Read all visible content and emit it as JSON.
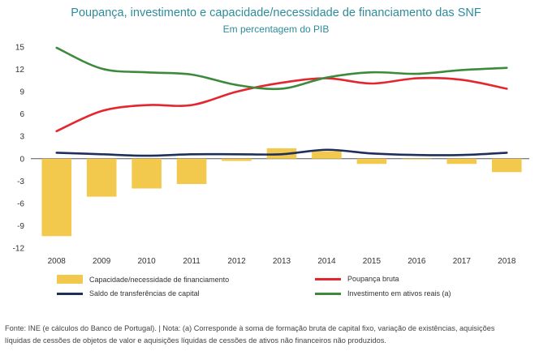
{
  "title": "Poupança, investimento e capacidade/necessidade de financiamento das SNF",
  "subtitle": "Em percentagem do PIB",
  "chart_data": {
    "type": "bar+line",
    "categories": [
      "2008",
      "2009",
      "2010",
      "2011",
      "2012",
      "2013",
      "2014",
      "2015",
      "2016",
      "2017",
      "2018"
    ],
    "ylim": [
      -12,
      15
    ],
    "yticks": [
      -12,
      -9,
      -6,
      -3,
      0,
      3,
      6,
      9,
      12,
      15
    ],
    "ytick_labels": [
      "-12",
      "-9",
      "-6",
      "-3",
      "0",
      "3",
      "6",
      "9",
      "12",
      "15"
    ],
    "bars": {
      "name": "Capacidade/necessidade de financiamento",
      "color": "#f2c94c",
      "values": [
        -10.4,
        -5.1,
        -4.0,
        -3.4,
        -0.3,
        1.4,
        1.0,
        -0.7,
        -0.1,
        -0.7,
        -1.8
      ]
    },
    "series": [
      {
        "name": "Poupança bruta",
        "color": "#e4262f",
        "values": [
          3.7,
          6.4,
          7.2,
          7.2,
          9.0,
          10.2,
          10.8,
          10.1,
          10.8,
          10.6,
          9.4
        ]
      },
      {
        "name": "Investimento em ativos reais (a)",
        "color": "#3d8a3d",
        "values": [
          14.9,
          12.1,
          11.6,
          11.3,
          9.9,
          9.4,
          10.9,
          11.6,
          11.4,
          11.9,
          12.2
        ]
      },
      {
        "name": "Saldo de transferências de capital",
        "color": "#1f2f5c",
        "values": [
          0.8,
          0.6,
          0.4,
          0.6,
          0.6,
          0.6,
          1.2,
          0.7,
          0.5,
          0.5,
          0.8
        ]
      }
    ],
    "legend": [
      {
        "label": "Capacidade/necessidade de financiamento",
        "kind": "bar",
        "color": "#f2c94c"
      },
      {
        "label": "Poupança bruta",
        "kind": "line",
        "color": "#e4262f"
      },
      {
        "label": "Saldo de transferências de capital",
        "kind": "line",
        "color": "#1f2f5c"
      },
      {
        "label": "Investimento em ativos reais (a)",
        "kind": "line",
        "color": "#3d8a3d"
      }
    ]
  },
  "footnote": {
    "line1": "Fonte: INE (e cálculos do Banco de Portugal).  |  Nota: (a) Corresponde à soma de formação bruta de capital fixo, variação de existências, aquisições",
    "line2": "líquidas de cessões de objetos de valor e aquisições líquidas de cessões de ativos não financeiros não produzidos."
  }
}
